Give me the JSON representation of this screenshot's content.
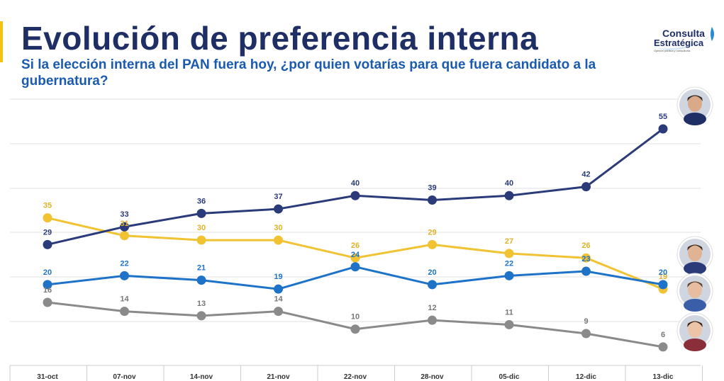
{
  "header": {
    "title": "Evolución de preferencia interna",
    "subtitle": "Si la elección interna del PAN fuera hoy, ¿por quien votarías para que fuera candidato a la gubernatura?"
  },
  "logo": {
    "line1": "Consulta",
    "line2": "Estratégica",
    "tagline": "Opinión pública y consultoría",
    "color_main": "#1f2f66",
    "color_accent": "#2a8bd6"
  },
  "colors": {
    "navy": "#2b3b7a",
    "yellow": "#f1c232",
    "blue": "#1e73c8",
    "gray": "#8a8a8a",
    "grid": "#e2e2e2"
  },
  "chart_data": {
    "type": "line",
    "categories": [
      "31-oct",
      "07-nov",
      "14-nov",
      "21-nov",
      "22-nov",
      "28-nov",
      "05-dic",
      "12-dic",
      "13-dic"
    ],
    "series": [
      {
        "color": "#2b3b7a",
        "label_color": "#2b3b7a",
        "values": [
          29,
          33,
          36,
          37,
          40,
          39,
          40,
          42,
          55
        ]
      },
      {
        "color": "#f1c232",
        "label_color": "#e0b32a",
        "values": [
          35,
          31,
          30,
          30,
          26,
          29,
          27,
          26,
          19
        ]
      },
      {
        "color": "#1e73c8",
        "label_color": "#1e73c8",
        "values": [
          20,
          22,
          21,
          19,
          24,
          20,
          22,
          23,
          20
        ]
      },
      {
        "color": "#8a8a8a",
        "label_color": "#777777",
        "values": [
          16,
          14,
          13,
          14,
          10,
          12,
          11,
          9,
          6
        ]
      }
    ],
    "ylim": [
      2,
      62
    ],
    "grid": true,
    "xlabel": "",
    "ylabel": ""
  }
}
